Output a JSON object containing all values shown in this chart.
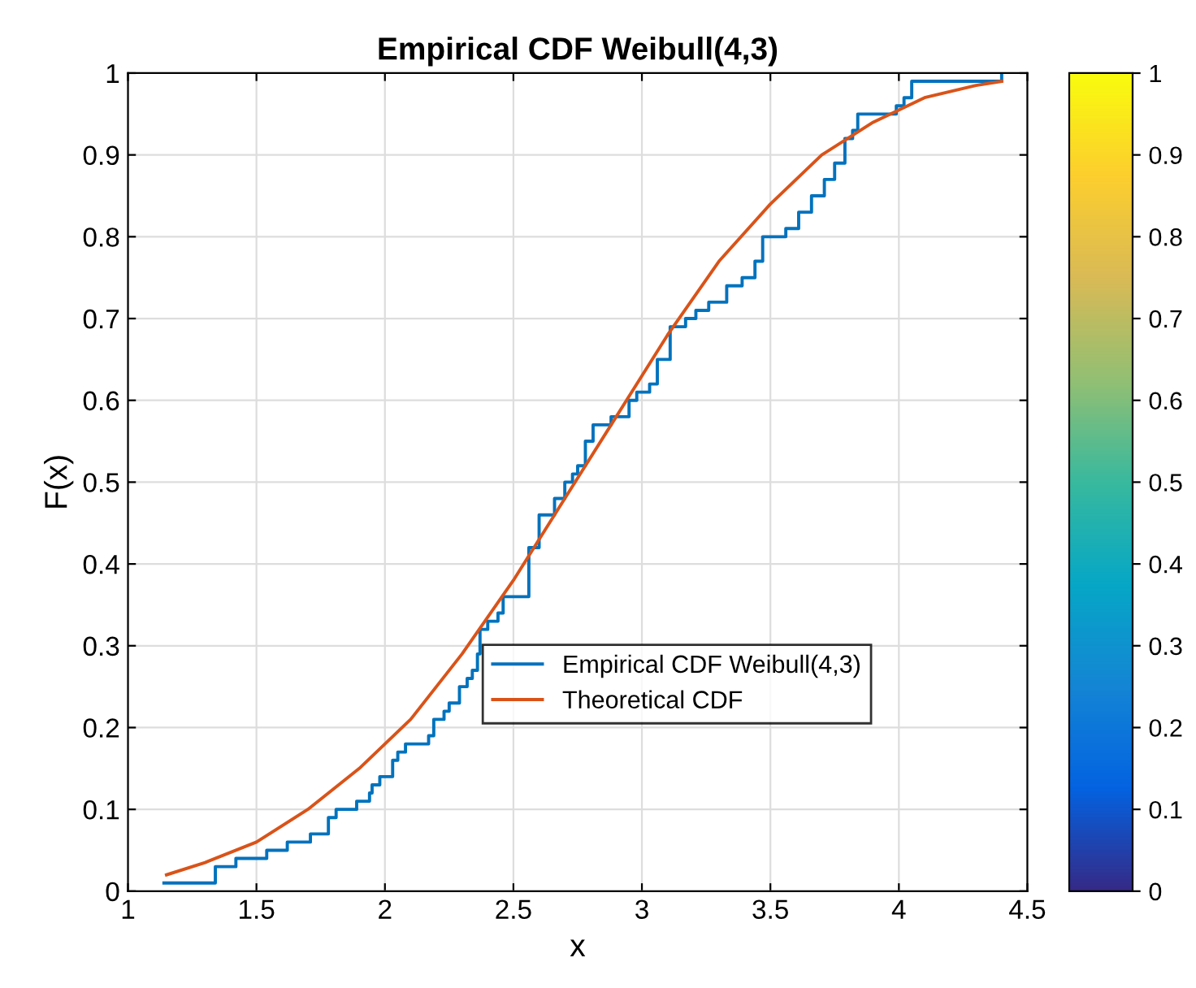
{
  "chart_data": {
    "type": "line",
    "title": "Empirical CDF Weibull(4,3)",
    "xlabel": "x",
    "ylabel": "F(x)",
    "xlim": [
      1,
      4.5
    ],
    "ylim": [
      0,
      1
    ],
    "xticks": [
      1,
      1.5,
      2,
      2.5,
      3,
      3.5,
      4,
      4.5
    ],
    "yticks": [
      0,
      0.1,
      0.2,
      0.3,
      0.4,
      0.5,
      0.6,
      0.7,
      0.8,
      0.9,
      1
    ],
    "grid": true,
    "legend": "bottom right",
    "clim": [
      0,
      1
    ],
    "cticks": [
      0,
      0.1,
      0.2,
      0.3,
      0.4,
      0.5,
      0.6,
      0.7,
      0.8,
      0.9,
      1
    ],
    "series": [
      {
        "name": "Empirical CDF Weibull(4,3)",
        "type": "step",
        "color": "#0072bd",
        "x": [
          1.14,
          1.34,
          1.42,
          1.54,
          1.62,
          1.71,
          1.78,
          1.81,
          1.89,
          1.94,
          1.95,
          1.98,
          2.03,
          2.05,
          2.08,
          2.17,
          2.19,
          2.23,
          2.25,
          2.29,
          2.32,
          2.34,
          2.36,
          2.37,
          2.4,
          2.44,
          2.46,
          2.56,
          2.6,
          2.66,
          2.7,
          2.73,
          2.75,
          2.78,
          2.81,
          2.88,
          2.95,
          2.98,
          3.03,
          3.06,
          3.11,
          3.17,
          3.21,
          3.26,
          3.33,
          3.39,
          3.44,
          3.47,
          3.56,
          3.61,
          3.66,
          3.71,
          3.75,
          3.79,
          3.82,
          3.84,
          3.99,
          4.02,
          4.05,
          4.07,
          4.4
        ],
        "values": [
          0.01,
          0.03,
          0.04,
          0.05,
          0.06,
          0.07,
          0.09,
          0.1,
          0.11,
          0.12,
          0.13,
          0.14,
          0.16,
          0.17,
          0.18,
          0.19,
          0.21,
          0.22,
          0.23,
          0.25,
          0.26,
          0.27,
          0.29,
          0.32,
          0.33,
          0.34,
          0.36,
          0.42,
          0.46,
          0.48,
          0.5,
          0.51,
          0.52,
          0.55,
          0.57,
          0.58,
          0.6,
          0.61,
          0.62,
          0.65,
          0.69,
          0.7,
          0.71,
          0.72,
          0.74,
          0.75,
          0.77,
          0.8,
          0.81,
          0.83,
          0.85,
          0.87,
          0.89,
          0.92,
          0.93,
          0.95,
          0.96,
          0.97,
          0.99,
          0.99,
          1.0
        ]
      },
      {
        "name": "Theoretical CDF",
        "color": "#d95319",
        "x": [
          1.15,
          1.3,
          1.5,
          1.7,
          1.9,
          2.1,
          2.3,
          2.5,
          2.7,
          2.9,
          3.1,
          3.3,
          3.5,
          3.7,
          3.9,
          4.1,
          4.3,
          4.4
        ],
        "values": [
          0.02,
          0.035,
          0.06,
          0.1,
          0.15,
          0.21,
          0.29,
          0.38,
          0.48,
          0.58,
          0.68,
          0.77,
          0.84,
          0.9,
          0.94,
          0.97,
          0.985,
          0.99
        ]
      }
    ]
  }
}
